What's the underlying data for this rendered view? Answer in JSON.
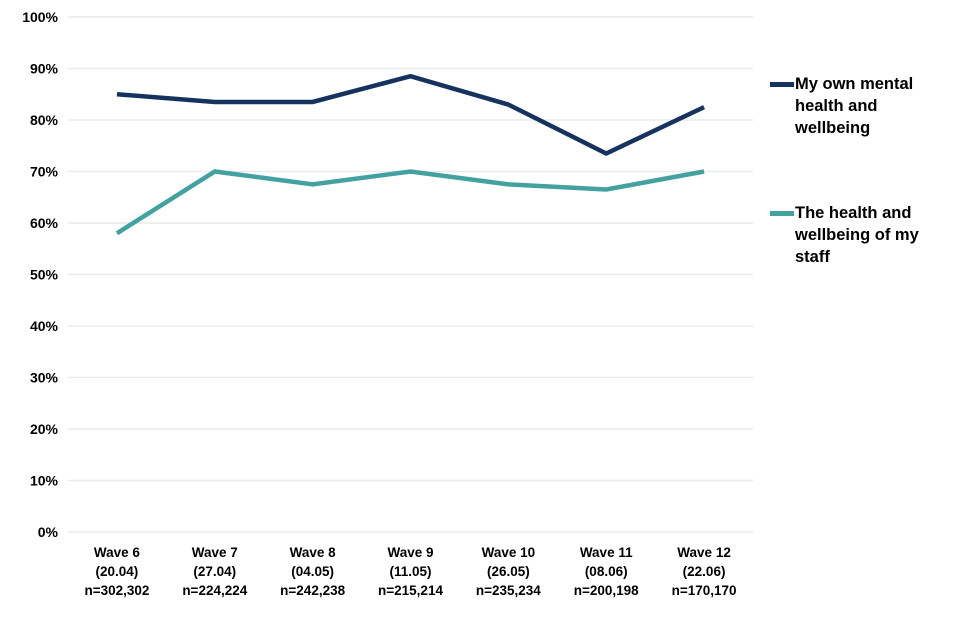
{
  "chart_data": {
    "type": "line",
    "title": "",
    "xlabel": "",
    "ylabel": "",
    "grid": true,
    "legend_position": "right",
    "y_axis": {
      "min": 0,
      "max": 100,
      "step": 10,
      "tick_labels": [
        "0%",
        "10%",
        "20%",
        "30%",
        "40%",
        "50%",
        "60%",
        "70%",
        "80%",
        "90%",
        "100%"
      ]
    },
    "categories": [
      {
        "wave": "Wave 6",
        "date": "(20.04)",
        "n": "n=302,302"
      },
      {
        "wave": "Wave 7",
        "date": "(27.04)",
        "n": "n=224,224"
      },
      {
        "wave": "Wave 8",
        "date": "(04.05)",
        "n": "n=242,238"
      },
      {
        "wave": "Wave 9",
        "date": "(11.05)",
        "n": "n=215,214"
      },
      {
        "wave": "Wave 10",
        "date": "(26.05)",
        "n": "n=235,234"
      },
      {
        "wave": "Wave 11",
        "date": "(08.06)",
        "n": "n=200,198"
      },
      {
        "wave": "Wave 12",
        "date": "(22.06)",
        "n": "n=170,170"
      }
    ],
    "series": [
      {
        "name": "My own mental health and wellbeing",
        "color": "#15335e",
        "values": [
          85,
          83.5,
          83.5,
          88.5,
          83,
          73.5,
          82.5
        ]
      },
      {
        "name": "The health and wellbeing of my staff",
        "color": "#43a2a0",
        "values": [
          58,
          70,
          67.5,
          70,
          67.5,
          66.5,
          70
        ]
      }
    ],
    "gridline_color": "#e8ecec"
  }
}
